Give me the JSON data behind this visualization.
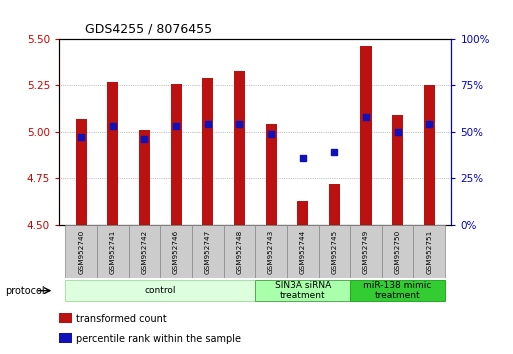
{
  "title": "GDS4255 / 8076455",
  "samples": [
    "GSM952740",
    "GSM952741",
    "GSM952742",
    "GSM952746",
    "GSM952747",
    "GSM952748",
    "GSM952743",
    "GSM952744",
    "GSM952745",
    "GSM952749",
    "GSM952750",
    "GSM952751"
  ],
  "transformed_counts": [
    5.07,
    5.27,
    5.01,
    5.26,
    5.29,
    5.33,
    5.04,
    4.63,
    4.72,
    5.46,
    5.09,
    5.25
  ],
  "percentile_ranks": [
    47,
    53,
    46,
    53,
    54,
    54,
    49,
    36,
    39,
    58,
    50,
    54
  ],
  "ymin": 4.5,
  "ymax": 5.5,
  "y_ticks": [
    4.5,
    4.75,
    5.0,
    5.25,
    5.5
  ],
  "y2min": 0,
  "y2max": 100,
  "y2_ticks": [
    0,
    25,
    50,
    75,
    100
  ],
  "bar_color": "#bb1111",
  "dot_color": "#1111bb",
  "bar_width": 0.35,
  "dot_size": 22,
  "groups": [
    {
      "label": "control",
      "start": 0,
      "end": 5,
      "color": "#ddffdd",
      "edge_color": "#aaddaa"
    },
    {
      "label": "SIN3A siRNA\ntreatment",
      "start": 6,
      "end": 8,
      "color": "#aaffaa",
      "edge_color": "#55aa55"
    },
    {
      "label": "miR-138 mimic\ntreatment",
      "start": 9,
      "end": 11,
      "color": "#33cc33",
      "edge_color": "#22aa22"
    }
  ],
  "legend_items": [
    {
      "label": "transformed count",
      "color": "#bb1111"
    },
    {
      "label": "percentile rank within the sample",
      "color": "#1111bb"
    }
  ],
  "left_axis_color": "#cc0000",
  "right_axis_color": "#0000cc",
  "grid_color": "#888888",
  "bg_color": "#ffffff"
}
